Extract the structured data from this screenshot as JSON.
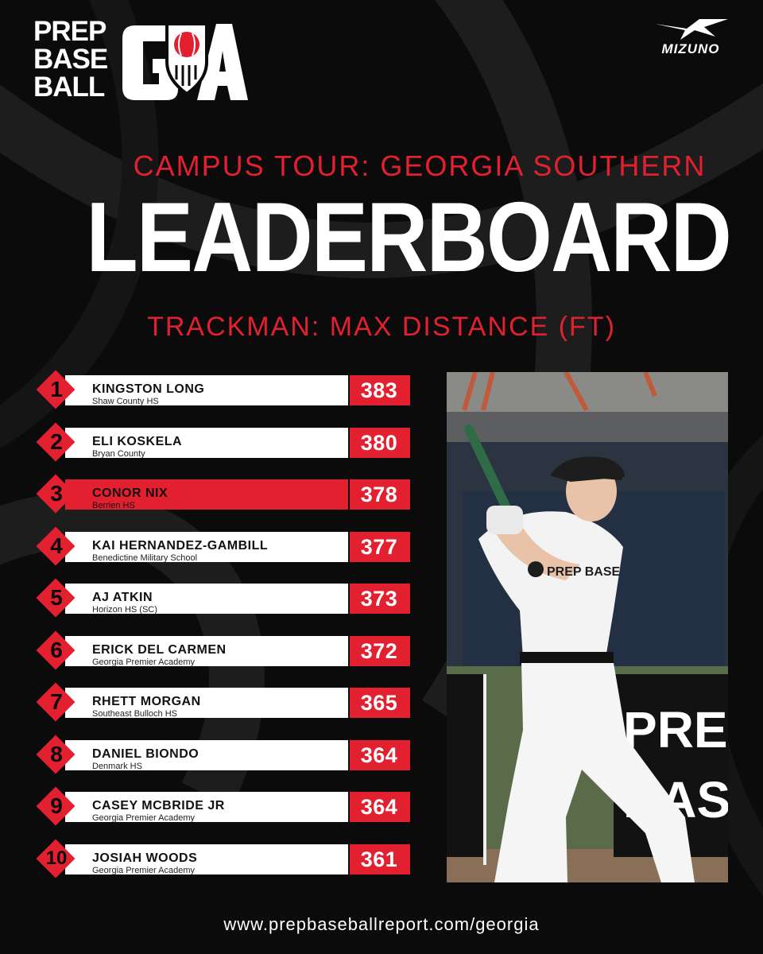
{
  "brand": {
    "logo_lines": [
      "PREP",
      "BASE",
      "BALL"
    ],
    "region_mark": "GA",
    "sponsor": "MIZUNO"
  },
  "header": {
    "event": "CAMPUS TOUR: GEORGIA SOUTHERN",
    "title": "LEADERBOARD",
    "metric": "TRACKMAN: MAX DISTANCE (FT)"
  },
  "leaderboard": [
    {
      "rank": "1",
      "name": "KINGSTON LONG",
      "school": "Shaw County HS",
      "distance": "383"
    },
    {
      "rank": "2",
      "name": "ELI KOSKELA",
      "school": "Bryan County",
      "distance": "380"
    },
    {
      "rank": "3",
      "name": "CONOR NIX",
      "school": "Berrien HS",
      "distance": "378"
    },
    {
      "rank": "4",
      "name": "KAI HERNANDEZ-GAMBILL",
      "school": "Benedictine Military School",
      "distance": "377"
    },
    {
      "rank": "5",
      "name": "AJ ATKIN",
      "school": "Horizon HS (SC)",
      "distance": "373"
    },
    {
      "rank": "6",
      "name": "ERICK DEL CARMEN",
      "school": "Georgia Premier Academy",
      "distance": "372"
    },
    {
      "rank": "7",
      "name": "RHETT MORGAN",
      "school": "Southeast Bulloch HS",
      "distance": "365"
    },
    {
      "rank": "8",
      "name": "DANIEL BIONDO",
      "school": "Denmark HS",
      "distance": "364"
    },
    {
      "rank": "9",
      "name": "CASEY MCBRIDE JR",
      "school": "Georgia Premier Academy",
      "distance": "364"
    },
    {
      "rank": "10",
      "name": "JOSIAH WOODS",
      "school": "Georgia Premier Academy",
      "distance": "361"
    }
  ],
  "highlighted_rank": "3",
  "photo": {
    "banner_text": "PREP BASE",
    "shirt_text": "PREP BASE"
  },
  "footer": {
    "url": "www.prepbaseballreport.com/georgia"
  },
  "colors": {
    "background": "#0b0b0b",
    "accent_red": "#e3202f",
    "row_white": "#ffffff"
  }
}
